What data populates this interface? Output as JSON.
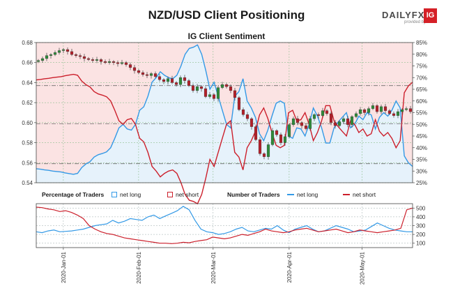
{
  "header": {
    "title": "NZD/USD Client Positioning",
    "subtitle": "IG Client Sentiment",
    "logo_text": "DAILYFX",
    "logo_sub": "provided by",
    "logo_badge": "IG"
  },
  "legend": {
    "pct_title": "Percentage of Traders",
    "pct_long": "net long",
    "pct_short": "net short",
    "num_title": "Number of Traders",
    "num_long": "net long",
    "num_short": "net short"
  },
  "colors": {
    "long": "#3399e6",
    "short": "#cc1f2b",
    "long_fill": "#e6f2fb",
    "short_fill": "#fbe3e3",
    "candle_up": "#2e8b3a",
    "candle_down": "#b3202a",
    "grid": "#8fbf8f",
    "axis": "#444444"
  },
  "chart_data": [
    {
      "type": "candlestick+line",
      "title": "IG Client Sentiment",
      "left_axis": {
        "ylim": [
          0.54,
          0.68
        ],
        "ticks": [
          "0.54",
          "0.56",
          "0.58",
          "0.60",
          "0.62",
          "0.64",
          "0.66",
          "0.68"
        ]
      },
      "right_axis": {
        "ylim": [
          25,
          85
        ],
        "ticks": [
          "25%",
          "30%",
          "35%",
          "40%",
          "45%",
          "50%",
          "55%",
          "60%",
          "65%",
          "70%",
          "75%",
          "80%",
          "85%"
        ]
      },
      "x_tick_labels": [
        "2020-Jan-01",
        "2020-Feb-01",
        "2020-Mar-01",
        "2020-Apr-01",
        "2020-May-01"
      ],
      "price_close": [
        0.662,
        0.664,
        0.667,
        0.668,
        0.67,
        0.672,
        0.673,
        0.671,
        0.668,
        0.667,
        0.666,
        0.664,
        0.663,
        0.662,
        0.663,
        0.661,
        0.66,
        0.661,
        0.66,
        0.659,
        0.66,
        0.658,
        0.655,
        0.652,
        0.65,
        0.648,
        0.647,
        0.649,
        0.646,
        0.643,
        0.641,
        0.644,
        0.64,
        0.638,
        0.645,
        0.642,
        0.637,
        0.632,
        0.636,
        0.634,
        0.626,
        0.628,
        0.624,
        0.635,
        0.638,
        0.636,
        0.632,
        0.625,
        0.613,
        0.608,
        0.604,
        0.596,
        0.583,
        0.569,
        0.566,
        0.578,
        0.592,
        0.588,
        0.58,
        0.586,
        0.598,
        0.604,
        0.6,
        0.597,
        0.594,
        0.604,
        0.608,
        0.607,
        0.612,
        0.609,
        0.6,
        0.597,
        0.601,
        0.604,
        0.598,
        0.606,
        0.609,
        0.613,
        0.61,
        0.614,
        0.617,
        0.611,
        0.616,
        0.612,
        0.609,
        0.607,
        0.611,
        0.613,
        0.614,
        0.611
      ],
      "long_pct": [
        31.0,
        30.8,
        30.5,
        30.3,
        30.0,
        29.8,
        29.6,
        29.2,
        28.9,
        28.6,
        29.0,
        31.5,
        33.0,
        34.0,
        36.0,
        37.0,
        37.5,
        38.2,
        40.0,
        44.0,
        48.5,
        50.0,
        48.0,
        47.5,
        50.0,
        56.0,
        57.5,
        62.0,
        68.0,
        70.0,
        72.5,
        71.0,
        70.0,
        69.5,
        71.0,
        75.0,
        80.0,
        82.5,
        83.0,
        84.0,
        80.0,
        73.0,
        65.0,
        68.0,
        62.0,
        56.0,
        50.0,
        48.5,
        62.0,
        64.0,
        69.5,
        60.0,
        57.0,
        53.0,
        46.0,
        43.0,
        47.5,
        53.5,
        59.0,
        60.0,
        59.0,
        45.0,
        44.0,
        48.5,
        48.0,
        45.0,
        50.0,
        57.0,
        53.5,
        48.5,
        42.0,
        42.0,
        48.5,
        51.0,
        53.0,
        55.0,
        48.5,
        50.0,
        53.5,
        52.0,
        55.0,
        54.0,
        48.0,
        53.0,
        55.0,
        53.5,
        56.0,
        60.0,
        57.0,
        36.5,
        33.5,
        32.0
      ],
      "number_of_traders": {
        "ylim": [
          50,
          550
        ],
        "ticks": [
          "100",
          "200",
          "300",
          "400",
          "500"
        ],
        "long": [
          230,
          220,
          240,
          250,
          230,
          235,
          240,
          250,
          260,
          280,
          300,
          310,
          320,
          360,
          330,
          350,
          380,
          370,
          360,
          400,
          420,
          380,
          410,
          440,
          470,
          520,
          480,
          360,
          260,
          230,
          220,
          200,
          210,
          230,
          260,
          280,
          240,
          230,
          250,
          270,
          260,
          300,
          250,
          220,
          260,
          280,
          300,
          260,
          230,
          240,
          270,
          300,
          280,
          260,
          230,
          240,
          250,
          290,
          330,
          300,
          270,
          250,
          240,
          230,
          230
        ],
        "short": [
          510,
          505,
          490,
          480,
          460,
          470,
          450,
          420,
          380,
          300,
          260,
          230,
          210,
          200,
          180,
          160,
          150,
          140,
          130,
          120,
          110,
          100,
          100,
          95,
          100,
          110,
          105,
          120,
          130,
          140,
          170,
          160,
          150,
          160,
          180,
          200,
          190,
          210,
          230,
          260,
          240,
          230,
          220,
          230,
          250,
          260,
          270,
          250,
          230,
          240,
          250,
          260,
          240,
          220,
          230,
          250,
          240,
          230,
          220,
          230,
          240,
          250,
          270,
          480,
          500
        ]
      }
    }
  ]
}
